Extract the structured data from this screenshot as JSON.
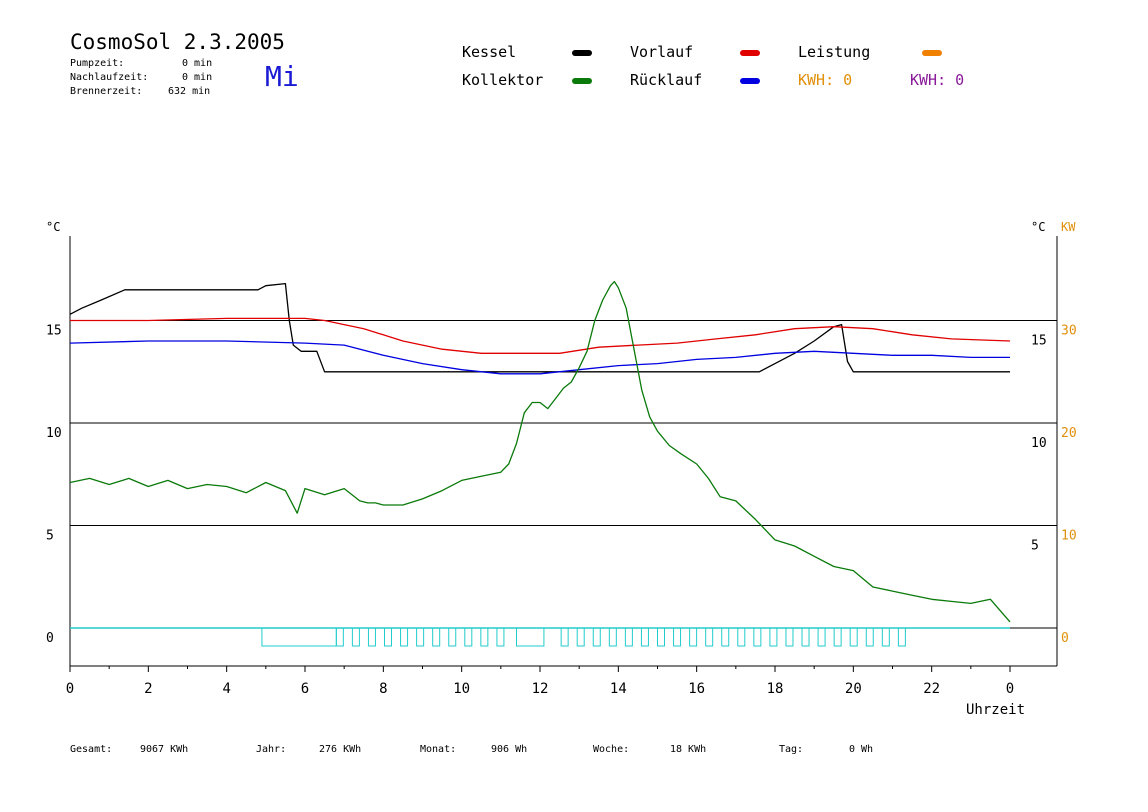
{
  "header": {
    "title": "CosmoSol 2.3.2005",
    "day": "Mi",
    "stats": [
      {
        "label": "Pumpzeit:",
        "value": "0 min"
      },
      {
        "label": "Nachlaufzeit:",
        "value": "0 min"
      },
      {
        "label": "Brennerzeit:",
        "value": "632 min"
      }
    ]
  },
  "legend": {
    "kessel": {
      "label": "Kessel",
      "color": "#000000"
    },
    "kollektor": {
      "label": "Kollektor",
      "color": "#0a7a0a"
    },
    "vorlauf": {
      "label": "Vorlauf",
      "color": "#e00000"
    },
    "ruecklauf": {
      "label": "Rücklauf",
      "color": "#0000e0"
    },
    "leistung": {
      "label": "Leistung",
      "color": "#f08000"
    },
    "kwh1": {
      "label": "KWH: 0",
      "color": "#e0900a"
    },
    "kwh2": {
      "label": "KWH: 0",
      "color": "#8a1a9a"
    }
  },
  "footer": {
    "gesamt": {
      "label": "Gesamt:",
      "value": "9067 KWh"
    },
    "jahr": {
      "label": "Jahr:",
      "value": "276 KWh"
    },
    "monat": {
      "label": "Monat:",
      "value": "906 Wh"
    },
    "woche": {
      "label": "Woche:",
      "value": "18 KWh"
    },
    "tag": {
      "label": "Tag:",
      "value": "0 Wh"
    }
  },
  "chart_data": {
    "type": "line",
    "xlabel": "Uhrzeit",
    "x_ticks": [
      "0",
      "2",
      "4",
      "6",
      "8",
      "10",
      "12",
      "14",
      "16",
      "18",
      "20",
      "22",
      "0"
    ],
    "xlim": [
      0,
      24
    ],
    "y_left": {
      "unit": "°C",
      "ticks": [
        "0",
        "5",
        "10",
        "15"
      ],
      "ylim": [
        -1.7,
        18.7
      ]
    },
    "y_inner": {
      "ticks": [
        "5",
        "10",
        "15"
      ]
    },
    "y_right": {
      "unit": "°C",
      "unit2": "KW",
      "ticks": [
        "0",
        "10",
        "20",
        "30"
      ],
      "color": "#e0900a"
    },
    "grid": [
      0,
      5,
      10,
      15
    ],
    "series": [
      {
        "name": "Kessel",
        "color": "#000000",
        "x": [
          0,
          0.3,
          0.8,
          1.4,
          2,
          3,
          4,
          4.8,
          5,
          5.5,
          5.6,
          5.7,
          5.9,
          6.3,
          6.5,
          7,
          10,
          12,
          14,
          16,
          17.3,
          17.6,
          18,
          18.5,
          19,
          19.5,
          19.7,
          19.85,
          20,
          21,
          22,
          23,
          24
        ],
        "y": [
          15.3,
          15.6,
          16.0,
          16.5,
          16.5,
          16.5,
          16.5,
          16.5,
          16.7,
          16.8,
          15.0,
          13.8,
          13.5,
          13.5,
          12.5,
          12.5,
          12.5,
          12.5,
          12.5,
          12.5,
          12.5,
          12.5,
          12.9,
          13.4,
          14.0,
          14.7,
          14.8,
          13.0,
          12.5,
          12.5,
          12.5,
          12.5,
          12.5
        ]
      },
      {
        "name": "Vorlauf",
        "color": "#e00000",
        "x": [
          0,
          2,
          4,
          6,
          6.5,
          7.5,
          8.5,
          9.5,
          10.5,
          11.5,
          12.5,
          13.5,
          14.5,
          15.5,
          16.5,
          17.5,
          18.5,
          19.5,
          20.5,
          21.5,
          22.5,
          24
        ],
        "y": [
          15.0,
          15.0,
          15.1,
          15.1,
          15.0,
          14.6,
          14.0,
          13.6,
          13.4,
          13.4,
          13.4,
          13.7,
          13.8,
          13.9,
          14.1,
          14.3,
          14.6,
          14.7,
          14.6,
          14.3,
          14.1,
          14.0
        ]
      },
      {
        "name": "Rücklauf",
        "color": "#0000e0",
        "x": [
          0,
          2,
          4,
          6,
          7,
          8,
          9,
          10,
          11,
          12,
          13,
          14,
          15,
          16,
          17,
          18,
          19,
          20,
          21,
          22,
          23,
          24
        ],
        "y": [
          13.9,
          14.0,
          14.0,
          13.9,
          13.8,
          13.3,
          12.9,
          12.6,
          12.4,
          12.4,
          12.6,
          12.8,
          12.9,
          13.1,
          13.2,
          13.4,
          13.5,
          13.4,
          13.3,
          13.3,
          13.2,
          13.2
        ]
      },
      {
        "name": "Kollektor",
        "color": "#0a7a0a",
        "x": [
          0,
          0.5,
          1,
          1.5,
          2,
          2.5,
          3,
          3.5,
          4,
          4.5,
          5,
          5.5,
          5.8,
          6,
          6.5,
          7,
          7.4,
          7.6,
          7.8,
          8,
          8.5,
          9,
          9.5,
          10,
          10.5,
          11,
          11.2,
          11.4,
          11.6,
          11.8,
          12,
          12.2,
          12.4,
          12.6,
          12.8,
          13,
          13.2,
          13.4,
          13.6,
          13.8,
          13.9,
          14,
          14.2,
          14.4,
          14.6,
          14.8,
          15,
          15.3,
          15.6,
          16,
          16.3,
          16.6,
          17,
          17.5,
          18,
          18.5,
          19,
          19.5,
          20,
          20.5,
          21,
          21.5,
          22,
          22.5,
          23,
          23.5,
          24
        ],
        "y": [
          7.1,
          7.3,
          7.0,
          7.3,
          6.9,
          7.2,
          6.8,
          7.0,
          6.9,
          6.6,
          7.1,
          6.7,
          5.6,
          6.8,
          6.5,
          6.8,
          6.2,
          6.1,
          6.1,
          6.0,
          6.0,
          6.3,
          6.7,
          7.2,
          7.4,
          7.6,
          8.0,
          9.0,
          10.5,
          11.0,
          11.0,
          10.7,
          11.2,
          11.7,
          12.0,
          12.7,
          13.5,
          15.0,
          16.0,
          16.7,
          16.9,
          16.6,
          15.6,
          13.6,
          11.6,
          10.3,
          9.6,
          8.9,
          8.5,
          8.0,
          7.3,
          6.4,
          6.2,
          5.3,
          4.3,
          4.0,
          3.5,
          3.0,
          2.8,
          2.0,
          1.8,
          1.6,
          1.4,
          1.3,
          1.2,
          1.4,
          0.3
        ]
      },
      {
        "name": "Leistung",
        "color": "#e0900a",
        "x": [
          0,
          24
        ],
        "y": [
          0,
          0
        ]
      }
    ],
    "burner_pulses": [
      {
        "start": 4.9,
        "end": 6.8
      },
      {
        "start": 11.4,
        "end": 12.1
      }
    ]
  }
}
